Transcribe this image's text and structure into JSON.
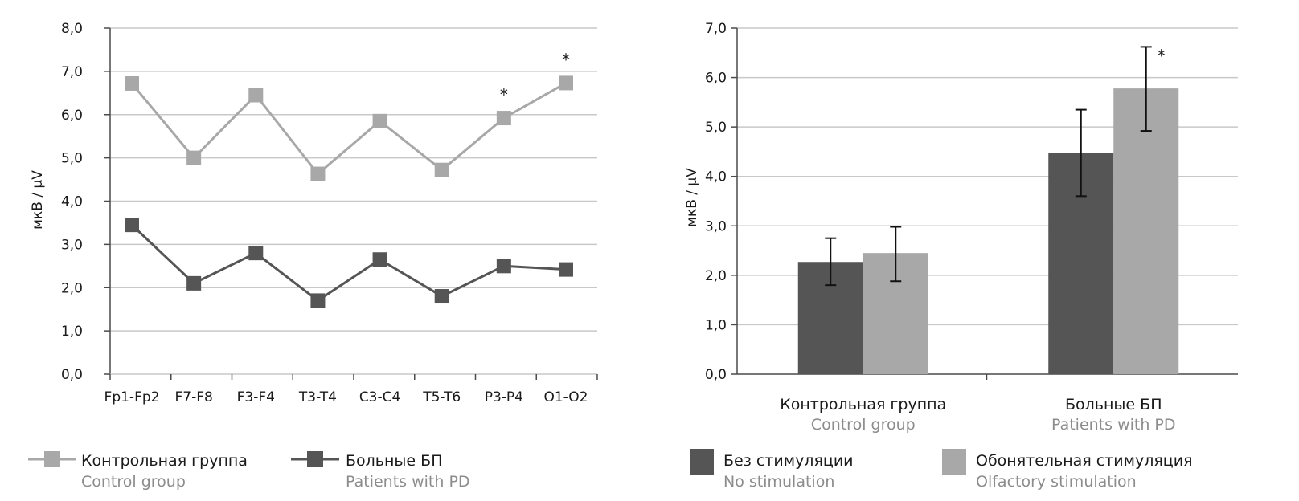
{
  "colors": {
    "control": "#a8a8a8",
    "pd": "#555555",
    "grid": "#c8c8c8",
    "axis": "#4a4a4a",
    "err": "#111111"
  },
  "chart_data": [
    {
      "type": "line",
      "ylabel": "мкВ / μV",
      "ylim": [
        0,
        8
      ],
      "yticks": [
        "0,0",
        "1,0",
        "2,0",
        "3,0",
        "4,0",
        "5,0",
        "6,0",
        "7,0",
        "8,0"
      ],
      "categories": [
        "Fp1-Fp2",
        "F7-F8",
        "F3-F4",
        "T3-T4",
        "C3-C4",
        "T5-T6",
        "P3-P4",
        "O1-O2"
      ],
      "series": [
        {
          "name": "Контрольная группа",
          "name_en": "Control group",
          "values": [
            6.72,
            5.0,
            6.45,
            4.63,
            5.85,
            4.72,
            5.92,
            6.73
          ],
          "color_key": "control"
        },
        {
          "name": "Больные БП",
          "name_en": "Patients with PD",
          "values": [
            3.45,
            2.1,
            2.8,
            1.7,
            2.65,
            1.8,
            2.5,
            2.42
          ],
          "color_key": "pd"
        }
      ],
      "annotations": [
        {
          "category_index": 6,
          "value": 5.92,
          "text": "*"
        },
        {
          "category_index": 7,
          "value": 6.73,
          "text": "*"
        }
      ]
    },
    {
      "type": "bar",
      "ylabel": "мкВ / μV",
      "ylim": [
        0,
        7
      ],
      "yticks": [
        "0,0",
        "1,0",
        "2,0",
        "3,0",
        "4,0",
        "5,0",
        "6,0",
        "7,0"
      ],
      "categories": [
        {
          "ru": "Контрольная группа",
          "en": "Control group"
        },
        {
          "ru": "Больные БП",
          "en": "Patients with PD"
        }
      ],
      "series": [
        {
          "name": "Без стимуляции",
          "name_en": "No stimulation",
          "values": [
            2.27,
            4.47
          ],
          "err_low": [
            1.8,
            3.6
          ],
          "err_high": [
            2.75,
            5.35
          ],
          "color_key": "pd"
        },
        {
          "name": "Обонятельная стимуляция",
          "name_en": "Olfactory stimulation",
          "values": [
            2.45,
            5.78
          ],
          "err_low": [
            1.88,
            4.92
          ],
          "err_high": [
            2.98,
            6.62
          ],
          "color_key": "control"
        }
      ],
      "annotations": [
        {
          "category_index": 1,
          "series_index": 1,
          "text": "*"
        }
      ]
    }
  ]
}
